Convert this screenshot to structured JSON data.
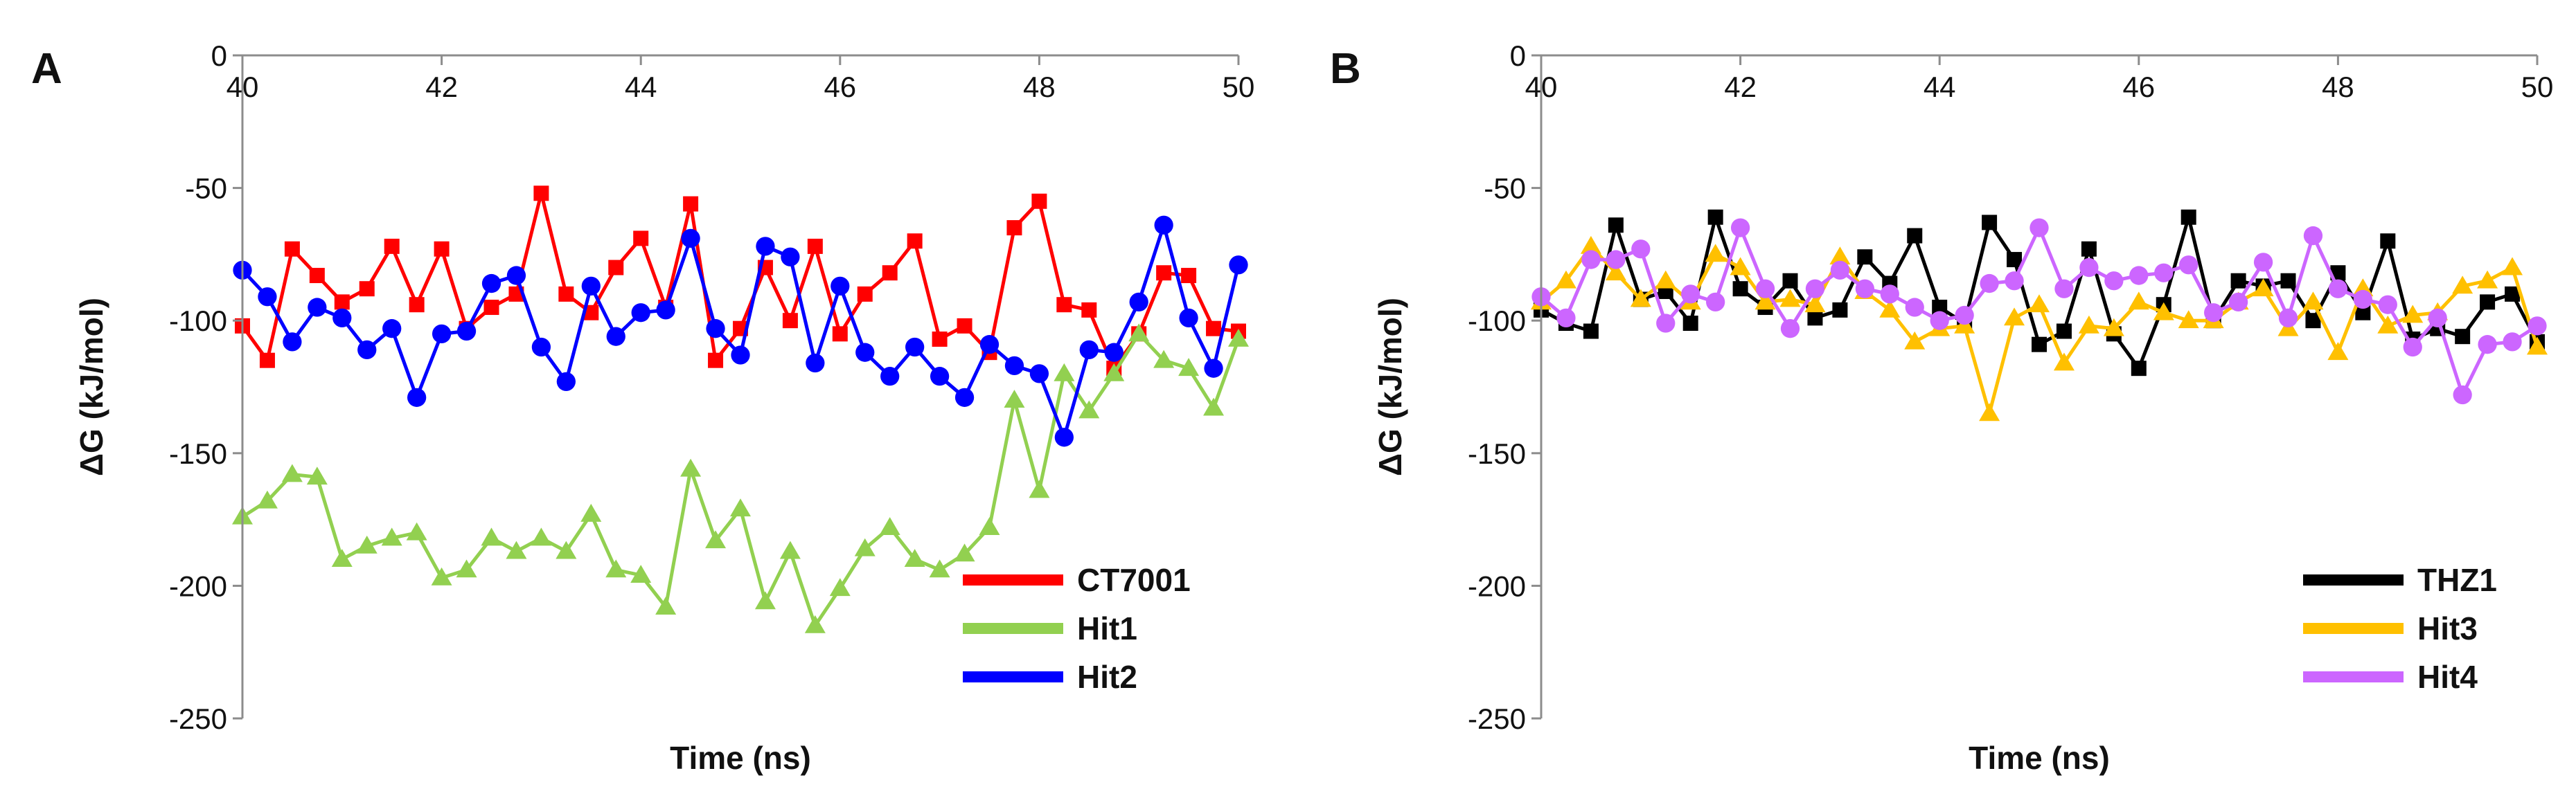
{
  "chart_data": [
    {
      "panel_label": "A",
      "type": "line",
      "xlabel": "Time (ns)",
      "ylabel": "ΔG (kJ/mol)",
      "xlim": [
        40,
        50
      ],
      "ylim": [
        -250,
        0
      ],
      "xticks": [
        "40",
        "42",
        "44",
        "46",
        "48",
        "50"
      ],
      "yticks": [
        "0",
        "-50",
        "-100",
        "-150",
        "-200",
        "-250"
      ],
      "legend_position": "bottom-right",
      "series": [
        {
          "name": "CT7001",
          "color": "#ff0000",
          "marker": "square",
          "x": [
            40,
            40.25,
            40.5,
            40.75,
            41,
            41.25,
            41.5,
            41.75,
            42,
            42.25,
            42.5,
            42.75,
            43,
            43.25,
            43.5,
            43.75,
            44,
            44.25,
            44.5,
            44.75,
            45,
            45.25,
            45.5,
            45.75,
            46,
            46.25,
            46.5,
            46.75,
            47,
            47.25,
            47.5,
            47.75,
            48,
            48.25,
            48.5,
            48.75,
            49,
            49.25,
            49.5,
            49.75,
            50
          ],
          "values": [
            -102,
            -115,
            -73,
            -83,
            -93,
            -88,
            -72,
            -94,
            -73,
            -103,
            -95,
            -90,
            -52,
            -90,
            -97,
            -80,
            -69,
            -95,
            -56,
            -115,
            -103,
            -80,
            -100,
            -72,
            -105,
            -90,
            -82,
            -70,
            -107,
            -102,
            -112,
            -65,
            -55,
            -94,
            -96,
            -118,
            -105,
            -82,
            -83,
            -103,
            -104
          ]
        },
        {
          "name": "Hit1",
          "color": "#92d050",
          "marker": "triangle",
          "x": [
            40,
            40.25,
            40.5,
            40.75,
            41,
            41.25,
            41.5,
            41.75,
            42,
            42.25,
            42.5,
            42.75,
            43,
            43.25,
            43.5,
            43.75,
            44,
            44.25,
            44.5,
            44.75,
            45,
            45.25,
            45.5,
            45.75,
            46,
            46.25,
            46.5,
            46.75,
            47,
            47.25,
            47.5,
            47.75,
            48,
            48.25,
            48.5,
            48.75,
            49,
            49.25,
            49.5,
            49.75,
            50
          ],
          "values": [
            -174,
            -168,
            -158,
            -159,
            -190,
            -185,
            -182,
            -180,
            -197,
            -194,
            -182,
            -187,
            -182,
            -187,
            -173,
            -194,
            -196,
            -208,
            -156,
            -183,
            -171,
            -206,
            -187,
            -215,
            -201,
            -186,
            -178,
            -190,
            -194,
            -188,
            -178,
            -130,
            -164,
            -120,
            -134,
            -120,
            -105,
            -115,
            -118,
            -133,
            -107
          ]
        },
        {
          "name": "Hit2",
          "color": "#0000ff",
          "marker": "circle",
          "x": [
            40,
            40.25,
            40.5,
            40.75,
            41,
            41.25,
            41.5,
            41.75,
            42,
            42.25,
            42.5,
            42.75,
            43,
            43.25,
            43.5,
            43.75,
            44,
            44.25,
            44.5,
            44.75,
            45,
            45.25,
            45.5,
            45.75,
            46,
            46.25,
            46.5,
            46.75,
            47,
            47.25,
            47.5,
            47.75,
            48,
            48.25,
            48.5,
            48.75,
            49,
            49.25,
            49.5,
            49.75,
            50
          ],
          "values": [
            -81,
            -91,
            -108,
            -95,
            -99,
            -111,
            -103,
            -129,
            -105,
            -104,
            -86,
            -83,
            -110,
            -123,
            -87,
            -106,
            -97,
            -96,
            -69,
            -103,
            -113,
            -72,
            -76,
            -116,
            -87,
            -112,
            -121,
            -110,
            -121,
            -129,
            -109,
            -117,
            -120,
            -144,
            -111,
            -112,
            -93,
            -64,
            -99,
            -118,
            -79
          ]
        }
      ]
    },
    {
      "panel_label": "B",
      "type": "line",
      "xlabel": "Time (ns)",
      "ylabel": "ΔG (kJ/mol)",
      "xlim": [
        40,
        50
      ],
      "ylim": [
        -250,
        0
      ],
      "xticks": [
        "40",
        "42",
        "44",
        "46",
        "48",
        "50"
      ],
      "yticks": [
        "0",
        "-50",
        "-100",
        "-150",
        "-200",
        "-250"
      ],
      "legend_position": "bottom-right",
      "series": [
        {
          "name": "THZ1",
          "color": "#000000",
          "marker": "square",
          "x": [
            40,
            40.25,
            40.5,
            40.75,
            41,
            41.25,
            41.5,
            41.75,
            42,
            42.25,
            42.5,
            42.75,
            43,
            43.25,
            43.5,
            43.75,
            44,
            44.25,
            44.5,
            44.75,
            45,
            45.25,
            45.5,
            45.75,
            46,
            46.25,
            46.5,
            46.75,
            47,
            47.25,
            47.5,
            47.75,
            48,
            48.25,
            48.5,
            48.75,
            49,
            49.25,
            49.5,
            49.75,
            50
          ],
          "values": [
            -96,
            -101,
            -104,
            -64,
            -92,
            -89,
            -101,
            -61,
            -88,
            -95,
            -85,
            -99,
            -96,
            -76,
            -86,
            -68,
            -95,
            -101,
            -63,
            -77,
            -109,
            -104,
            -73,
            -105,
            -118,
            -94,
            -61,
            -100,
            -85,
            -87,
            -85,
            -100,
            -82,
            -97,
            -70,
            -107,
            -103,
            -106,
            -93,
            -90,
            -108
          ]
        },
        {
          "name": "Hit3",
          "color": "#ffc000",
          "marker": "triangle",
          "x": [
            40,
            40.25,
            40.5,
            40.75,
            41,
            41.25,
            41.5,
            41.75,
            42,
            42.25,
            42.5,
            42.75,
            43,
            43.25,
            43.5,
            43.75,
            44,
            44.25,
            44.5,
            44.75,
            45,
            45.25,
            45.5,
            45.75,
            46,
            46.25,
            46.5,
            46.75,
            47,
            47.25,
            47.5,
            47.75,
            48,
            48.25,
            48.5,
            48.75,
            49,
            49.25,
            49.5,
            49.75,
            50
          ],
          "values": [
            -93,
            -85,
            -72,
            -82,
            -92,
            -85,
            -93,
            -75,
            -80,
            -93,
            -92,
            -94,
            -76,
            -89,
            -96,
            -108,
            -103,
            -102,
            -135,
            -99,
            -94,
            -116,
            -102,
            -103,
            -93,
            -97,
            -100,
            -100,
            -93,
            -88,
            -103,
            -93,
            -112,
            -88,
            -102,
            -98,
            -97,
            -87,
            -85,
            -80,
            -110
          ]
        },
        {
          "name": "Hit4",
          "color": "#cc66ff",
          "marker": "circle",
          "x": [
            40,
            40.25,
            40.5,
            40.75,
            41,
            41.25,
            41.5,
            41.75,
            42,
            42.25,
            42.5,
            42.75,
            43,
            43.25,
            43.5,
            43.75,
            44,
            44.25,
            44.5,
            44.75,
            45,
            45.25,
            45.5,
            45.75,
            46,
            46.25,
            46.5,
            46.75,
            47,
            47.25,
            47.5,
            47.75,
            48,
            48.25,
            48.5,
            48.75,
            49,
            49.25,
            49.5,
            49.75,
            50
          ],
          "values": [
            -91,
            -99,
            -77,
            -77,
            -73,
            -101,
            -90,
            -93,
            -65,
            -88,
            -103,
            -88,
            -81,
            -88,
            -90,
            -95,
            -100,
            -98,
            -86,
            -85,
            -65,
            -88,
            -80,
            -85,
            -83,
            -82,
            -79,
            -97,
            -93,
            -78,
            -99,
            -68,
            -88,
            -92,
            -94,
            -110,
            -99,
            -128,
            -109,
            -108,
            -102
          ]
        }
      ]
    }
  ]
}
